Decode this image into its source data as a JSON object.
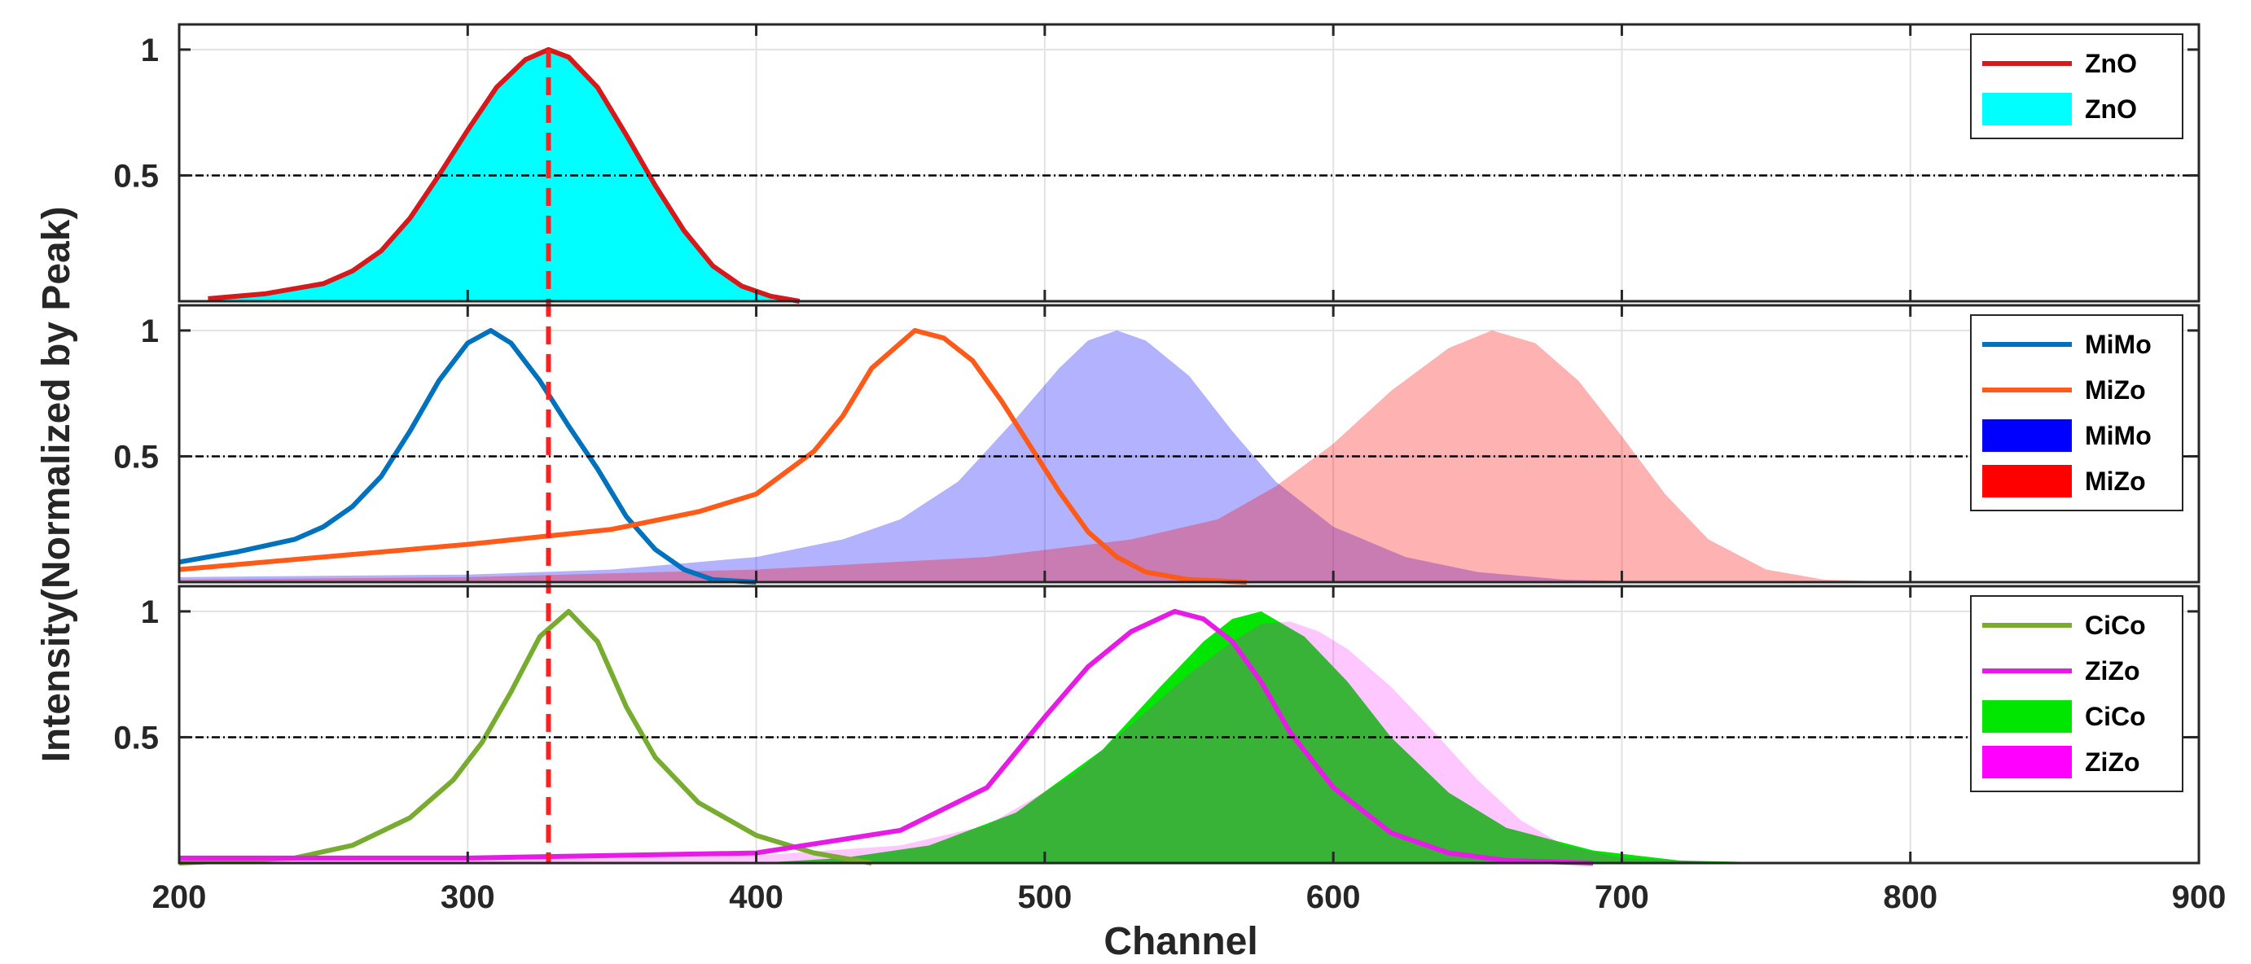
{
  "chart_data": {
    "type": "line",
    "xlabel": "Channel",
    "ylabel": "Intensity(Normalized by Peak)",
    "xlim": [
      200,
      900
    ],
    "xticks": [
      "200",
      "300",
      "400",
      "500",
      "600",
      "700",
      "800",
      "900"
    ],
    "yticks": [
      "0.5",
      "1"
    ],
    "ylim": [
      0,
      1.1
    ],
    "grid": true,
    "reference_lines": {
      "horizontal_y": 0.5,
      "vertical_x": 328
    },
    "panels": [
      {
        "legend": "top-right",
        "series": [
          {
            "name": "ZnO",
            "style": "line",
            "color": "#d7191c",
            "x": [
              210,
              230,
              250,
              260,
              270,
              280,
              290,
              300,
              310,
              320,
              328,
              335,
              345,
              355,
              365,
              375,
              385,
              395,
              405,
              415
            ],
            "y": [
              0.01,
              0.03,
              0.07,
              0.12,
              0.2,
              0.33,
              0.5,
              0.68,
              0.85,
              0.96,
              1.0,
              0.97,
              0.85,
              0.66,
              0.46,
              0.28,
              0.14,
              0.06,
              0.02,
              0.0
            ]
          },
          {
            "name": "ZnO",
            "style": "area",
            "color": "#00ffff",
            "x": [
              210,
              230,
              250,
              260,
              270,
              280,
              290,
              300,
              310,
              320,
              328,
              335,
              345,
              355,
              365,
              375,
              385,
              395,
              405,
              415
            ],
            "y": [
              0.01,
              0.03,
              0.07,
              0.12,
              0.2,
              0.33,
              0.5,
              0.68,
              0.85,
              0.96,
              1.0,
              0.97,
              0.85,
              0.66,
              0.46,
              0.28,
              0.14,
              0.06,
              0.02,
              0.0
            ]
          }
        ]
      },
      {
        "legend": "top-right",
        "series": [
          {
            "name": "MiMo",
            "style": "line",
            "color": "#0072bd",
            "x": [
              200,
              220,
              240,
              250,
              260,
              270,
              280,
              290,
              300,
              308,
              315,
              325,
              335,
              345,
              355,
              365,
              375,
              385,
              400
            ],
            "y": [
              0.08,
              0.12,
              0.17,
              0.22,
              0.3,
              0.42,
              0.6,
              0.8,
              0.95,
              1.0,
              0.95,
              0.8,
              0.62,
              0.45,
              0.26,
              0.13,
              0.05,
              0.01,
              0.0
            ]
          },
          {
            "name": "MiZo",
            "style": "line",
            "color": "#ff5a1a",
            "x": [
              200,
              250,
              300,
              350,
              380,
              400,
              420,
              430,
              440,
              455,
              465,
              475,
              485,
              495,
              505,
              515,
              525,
              535,
              550,
              570
            ],
            "y": [
              0.05,
              0.1,
              0.15,
              0.21,
              0.28,
              0.35,
              0.52,
              0.66,
              0.85,
              1.0,
              0.97,
              0.88,
              0.72,
              0.54,
              0.36,
              0.2,
              0.1,
              0.04,
              0.01,
              0.0
            ]
          },
          {
            "name": "MiMo",
            "style": "area",
            "color": "#0000ff",
            "opacity": 0.3,
            "x": [
              200,
              300,
              350,
              400,
              430,
              450,
              470,
              490,
              505,
              515,
              525,
              535,
              550,
              565,
              580,
              600,
              625,
              650,
              680,
              720,
              900
            ],
            "y": [
              0.02,
              0.03,
              0.05,
              0.1,
              0.17,
              0.25,
              0.4,
              0.65,
              0.85,
              0.96,
              1.0,
              0.96,
              0.82,
              0.6,
              0.4,
              0.22,
              0.1,
              0.04,
              0.01,
              0.0,
              0.0
            ]
          },
          {
            "name": "MiZo",
            "style": "area",
            "color": "#ff0000",
            "opacity": 0.3,
            "x": [
              200,
              300,
              400,
              480,
              530,
              560,
              580,
              600,
              620,
              640,
              655,
              670,
              685,
              700,
              715,
              730,
              750,
              770,
              800,
              900
            ],
            "y": [
              0.01,
              0.02,
              0.05,
              0.1,
              0.17,
              0.25,
              0.38,
              0.55,
              0.76,
              0.93,
              1.0,
              0.95,
              0.8,
              0.58,
              0.35,
              0.17,
              0.05,
              0.01,
              0.0,
              0.0
            ]
          }
        ]
      },
      {
        "legend": "top-right",
        "series": [
          {
            "name": "CiCo",
            "style": "line",
            "color": "#77ac30",
            "x": [
              200,
              240,
              260,
              280,
              295,
              305,
              315,
              325,
              335,
              345,
              355,
              365,
              380,
              400,
              420,
              440
            ],
            "y": [
              0.0,
              0.02,
              0.07,
              0.18,
              0.33,
              0.48,
              0.68,
              0.9,
              1.0,
              0.88,
              0.62,
              0.42,
              0.24,
              0.11,
              0.04,
              0.0
            ]
          },
          {
            "name": "ZiZo",
            "style": "line",
            "color": "#e61ce6",
            "x": [
              200,
              300,
              400,
              450,
              480,
              500,
              515,
              530,
              545,
              555,
              565,
              575,
              585,
              600,
              620,
              640,
              660,
              690
            ],
            "y": [
              0.02,
              0.02,
              0.04,
              0.13,
              0.3,
              0.58,
              0.78,
              0.92,
              1.0,
              0.97,
              0.88,
              0.72,
              0.52,
              0.3,
              0.12,
              0.04,
              0.01,
              0.0
            ]
          },
          {
            "name": "CiCo",
            "style": "area",
            "color": "#00e600",
            "x": [
              200,
              400,
              430,
              460,
              490,
              520,
              540,
              555,
              565,
              575,
              590,
              605,
              620,
              640,
              660,
              690,
              720,
              760,
              900
            ],
            "y": [
              0.0,
              0.0,
              0.02,
              0.07,
              0.2,
              0.45,
              0.7,
              0.88,
              0.97,
              1.0,
              0.9,
              0.72,
              0.5,
              0.28,
              0.14,
              0.05,
              0.01,
              0.0,
              0.0
            ]
          },
          {
            "name": "ZiZo",
            "style": "area",
            "color": "#ff00ff",
            "opacity": 0.22,
            "x": [
              200,
              400,
              450,
              480,
              510,
              530,
              550,
              565,
              575,
              585,
              595,
              605,
              620,
              635,
              650,
              665,
              680,
              700,
              740,
              900
            ],
            "y": [
              0.02,
              0.03,
              0.07,
              0.15,
              0.35,
              0.55,
              0.75,
              0.88,
              0.95,
              0.96,
              0.92,
              0.85,
              0.7,
              0.52,
              0.33,
              0.17,
              0.07,
              0.02,
              0.0,
              0.0
            ]
          }
        ]
      }
    ]
  }
}
